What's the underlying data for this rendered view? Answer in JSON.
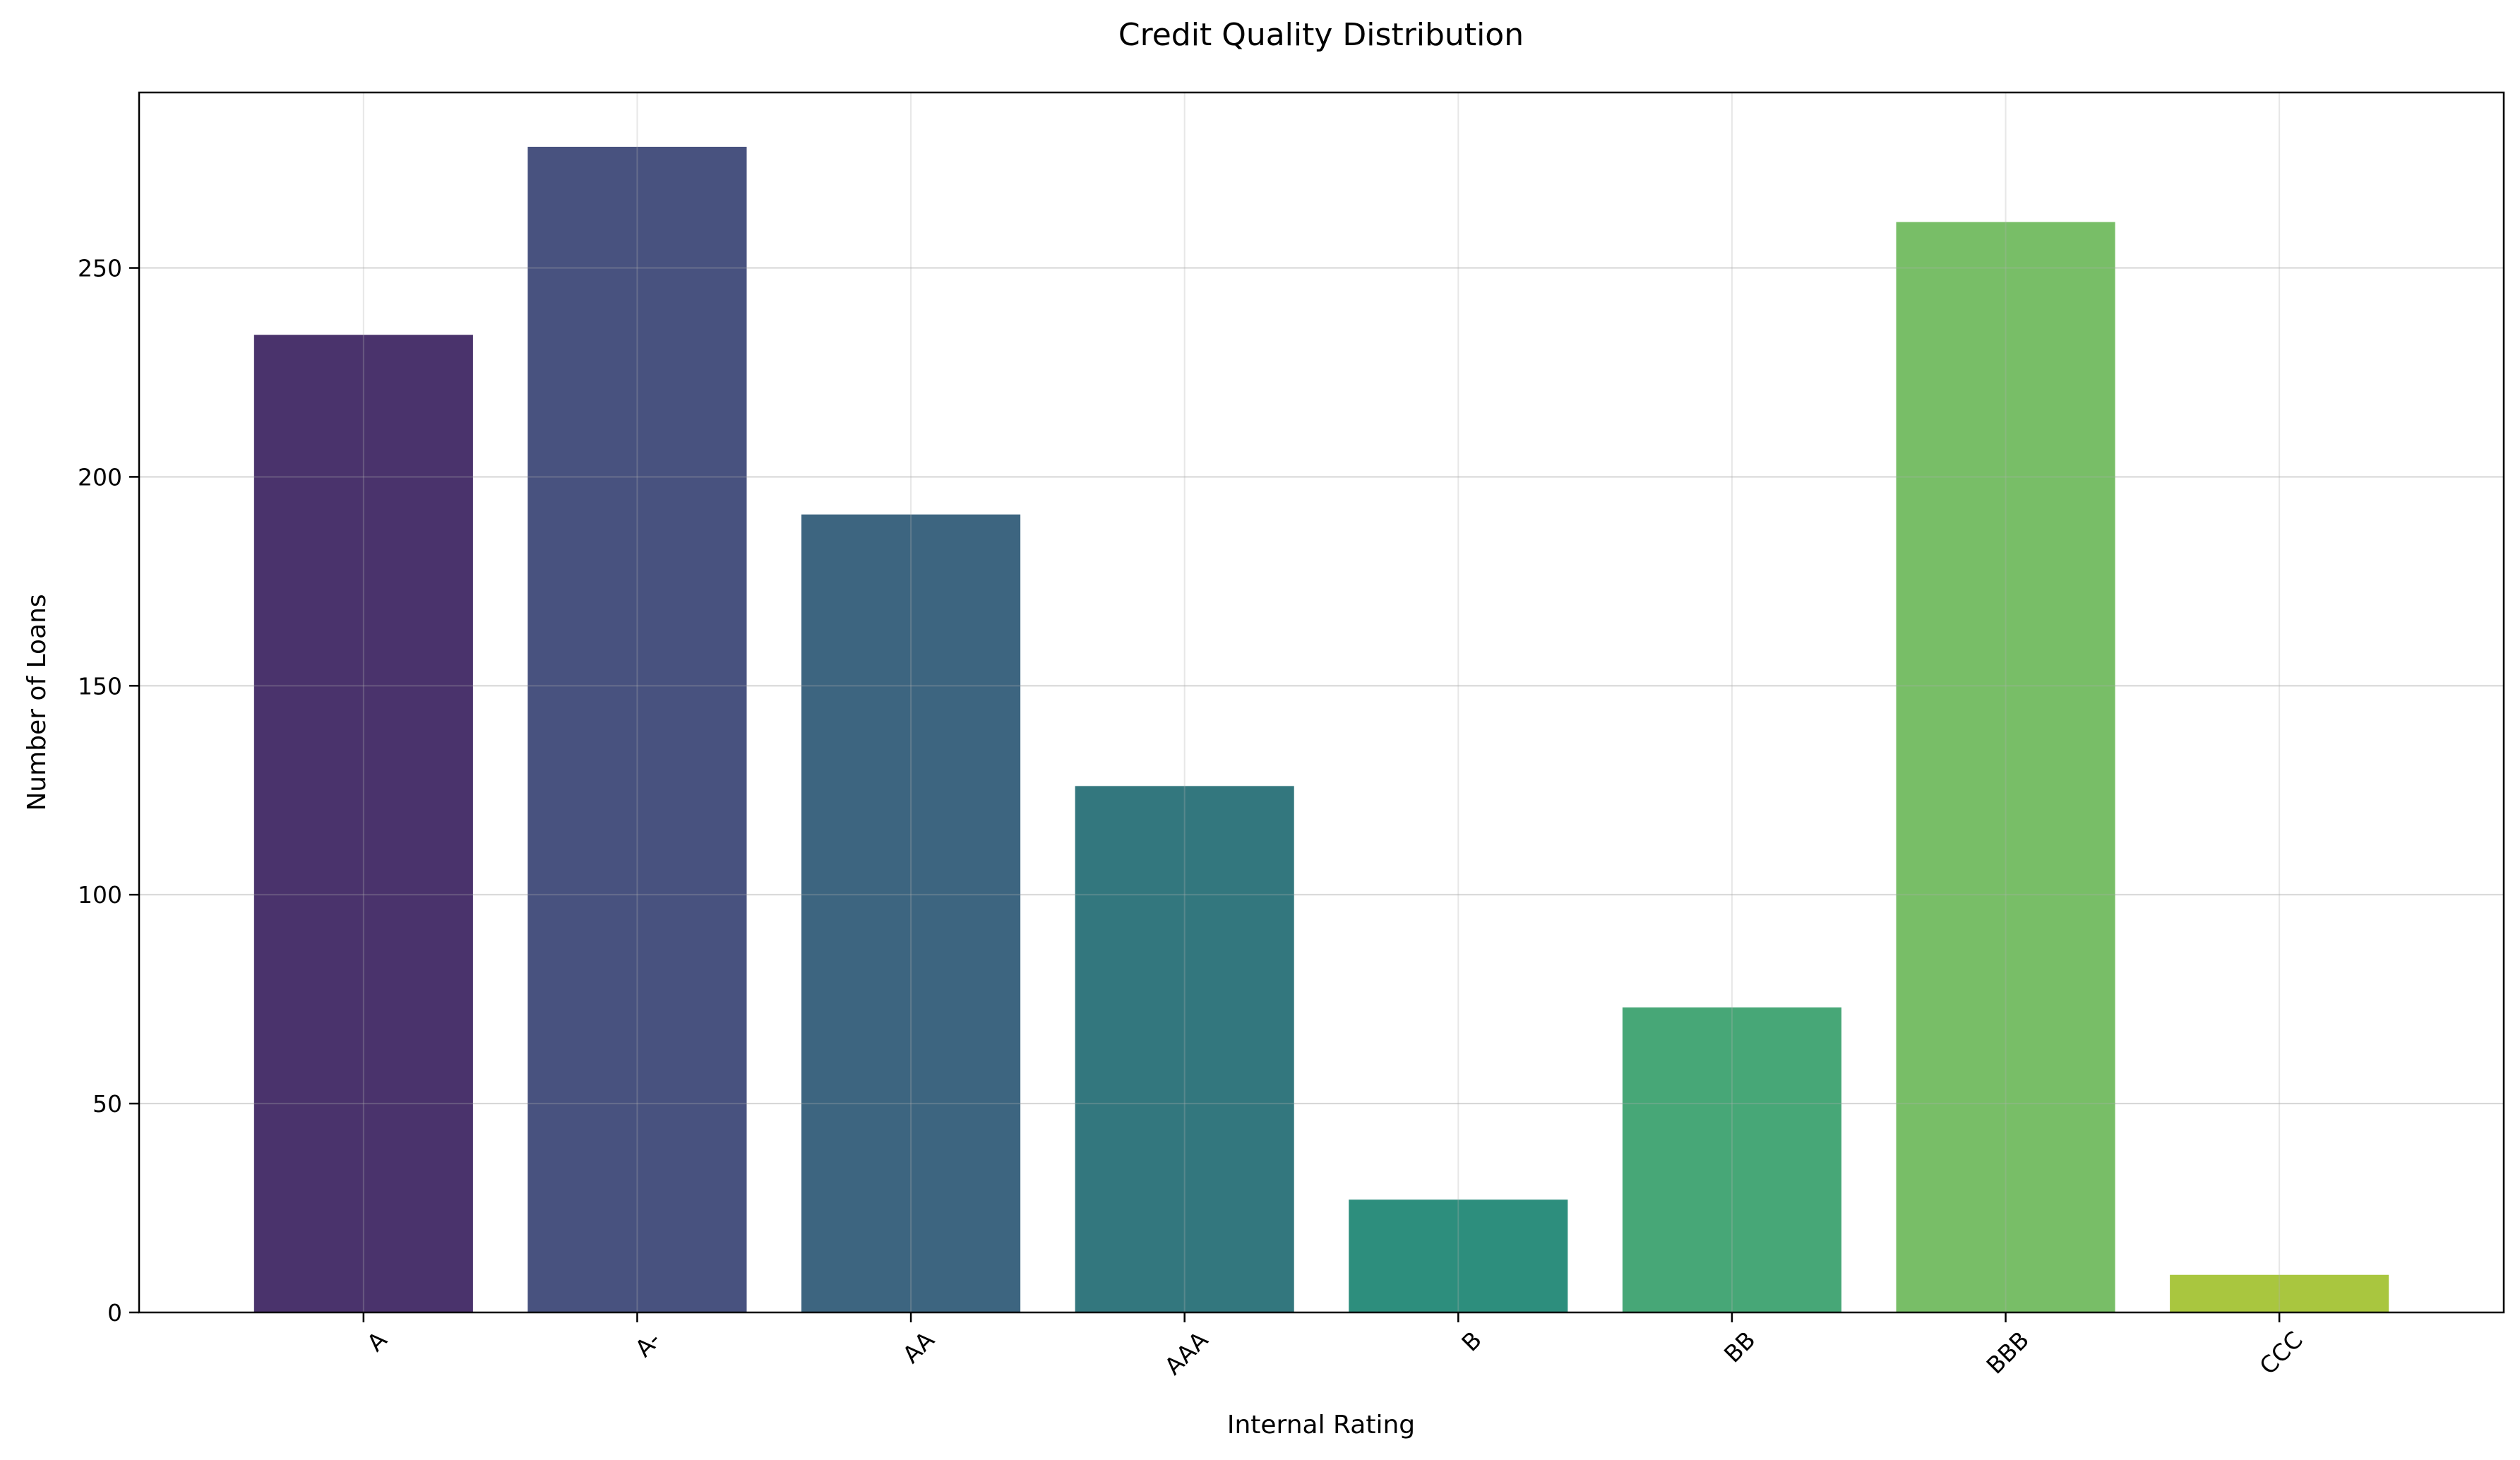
{
  "chart_data": {
    "type": "bar",
    "title": "Credit Quality Distribution",
    "xlabel": "Internal Rating",
    "ylabel": "Number of Loans",
    "categories": [
      "A",
      "A-",
      "AA",
      "AAA",
      "B",
      "BB",
      "BBB",
      "CCC"
    ],
    "values": [
      234,
      279,
      191,
      126,
      27,
      73,
      261,
      9
    ],
    "colors": [
      "#472d7b",
      "#3b528b",
      "#2c728e",
      "#21918c",
      "#28ae80",
      "#5ec962",
      "#addc30",
      "#fde725"
    ],
    "bar_colors_rendered": [
      "#4a336c",
      "#48527f",
      "#3d6580",
      "#33777e",
      "#2d8e7d",
      "#47a777",
      "#78be67",
      "#a9c63f"
    ],
    "ylim": [
      0,
      292
    ],
    "yticks": [
      0,
      50,
      100,
      150,
      200,
      250
    ],
    "x_tick_rotation_deg": 45,
    "grid": true,
    "legend": "none"
  }
}
